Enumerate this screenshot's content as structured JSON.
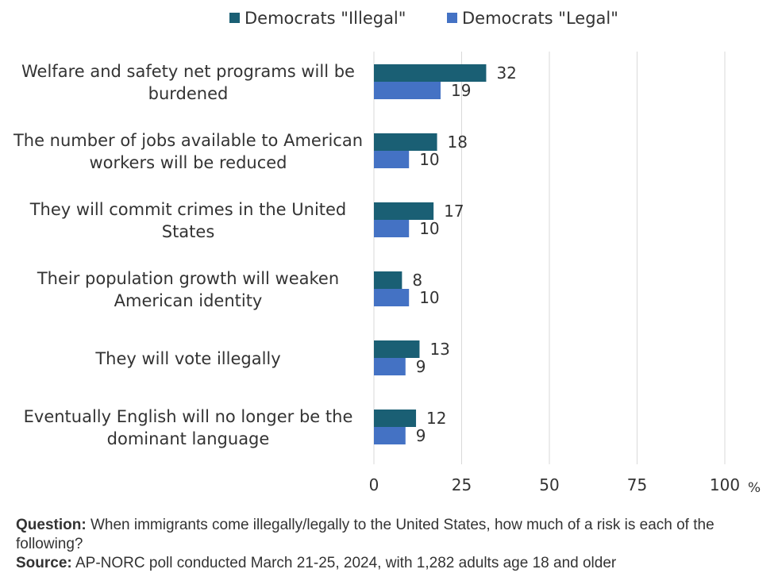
{
  "chart_data": {
    "type": "bar",
    "orientation": "horizontal",
    "categories": [
      [
        "Welfare and safety net programs will be",
        "burdened"
      ],
      [
        "The number of jobs available to American",
        "workers will be reduced"
      ],
      [
        "They will commit crimes in the United",
        "States"
      ],
      [
        "Their population growth will weaken",
        "American identity"
      ],
      [
        "They will vote illegally"
      ],
      [
        "Eventually English will no longer be the",
        "dominant language"
      ]
    ],
    "series": [
      {
        "name": "Democrats \"Illegal\"",
        "color": "#1a5f74",
        "values": [
          32,
          18,
          17,
          8,
          13,
          12
        ]
      },
      {
        "name": "Democrats \"Legal\"",
        "color": "#4472c4",
        "values": [
          19,
          10,
          10,
          10,
          9,
          9
        ]
      }
    ],
    "xlim": [
      0,
      100
    ],
    "xticks": [
      "0",
      "25",
      "50",
      "75",
      "100"
    ],
    "unit": "%",
    "grid": true,
    "legend": "top"
  },
  "footer": {
    "question_label": "Question:",
    "question_text": " When immigrants come illegally/legally to the United States, how much of a risk is each of the following?",
    "source_label": "Source:",
    "source_text": " AP-NORC poll conducted March 21-25, 2024, with 1,282 adults age 18 and older"
  }
}
